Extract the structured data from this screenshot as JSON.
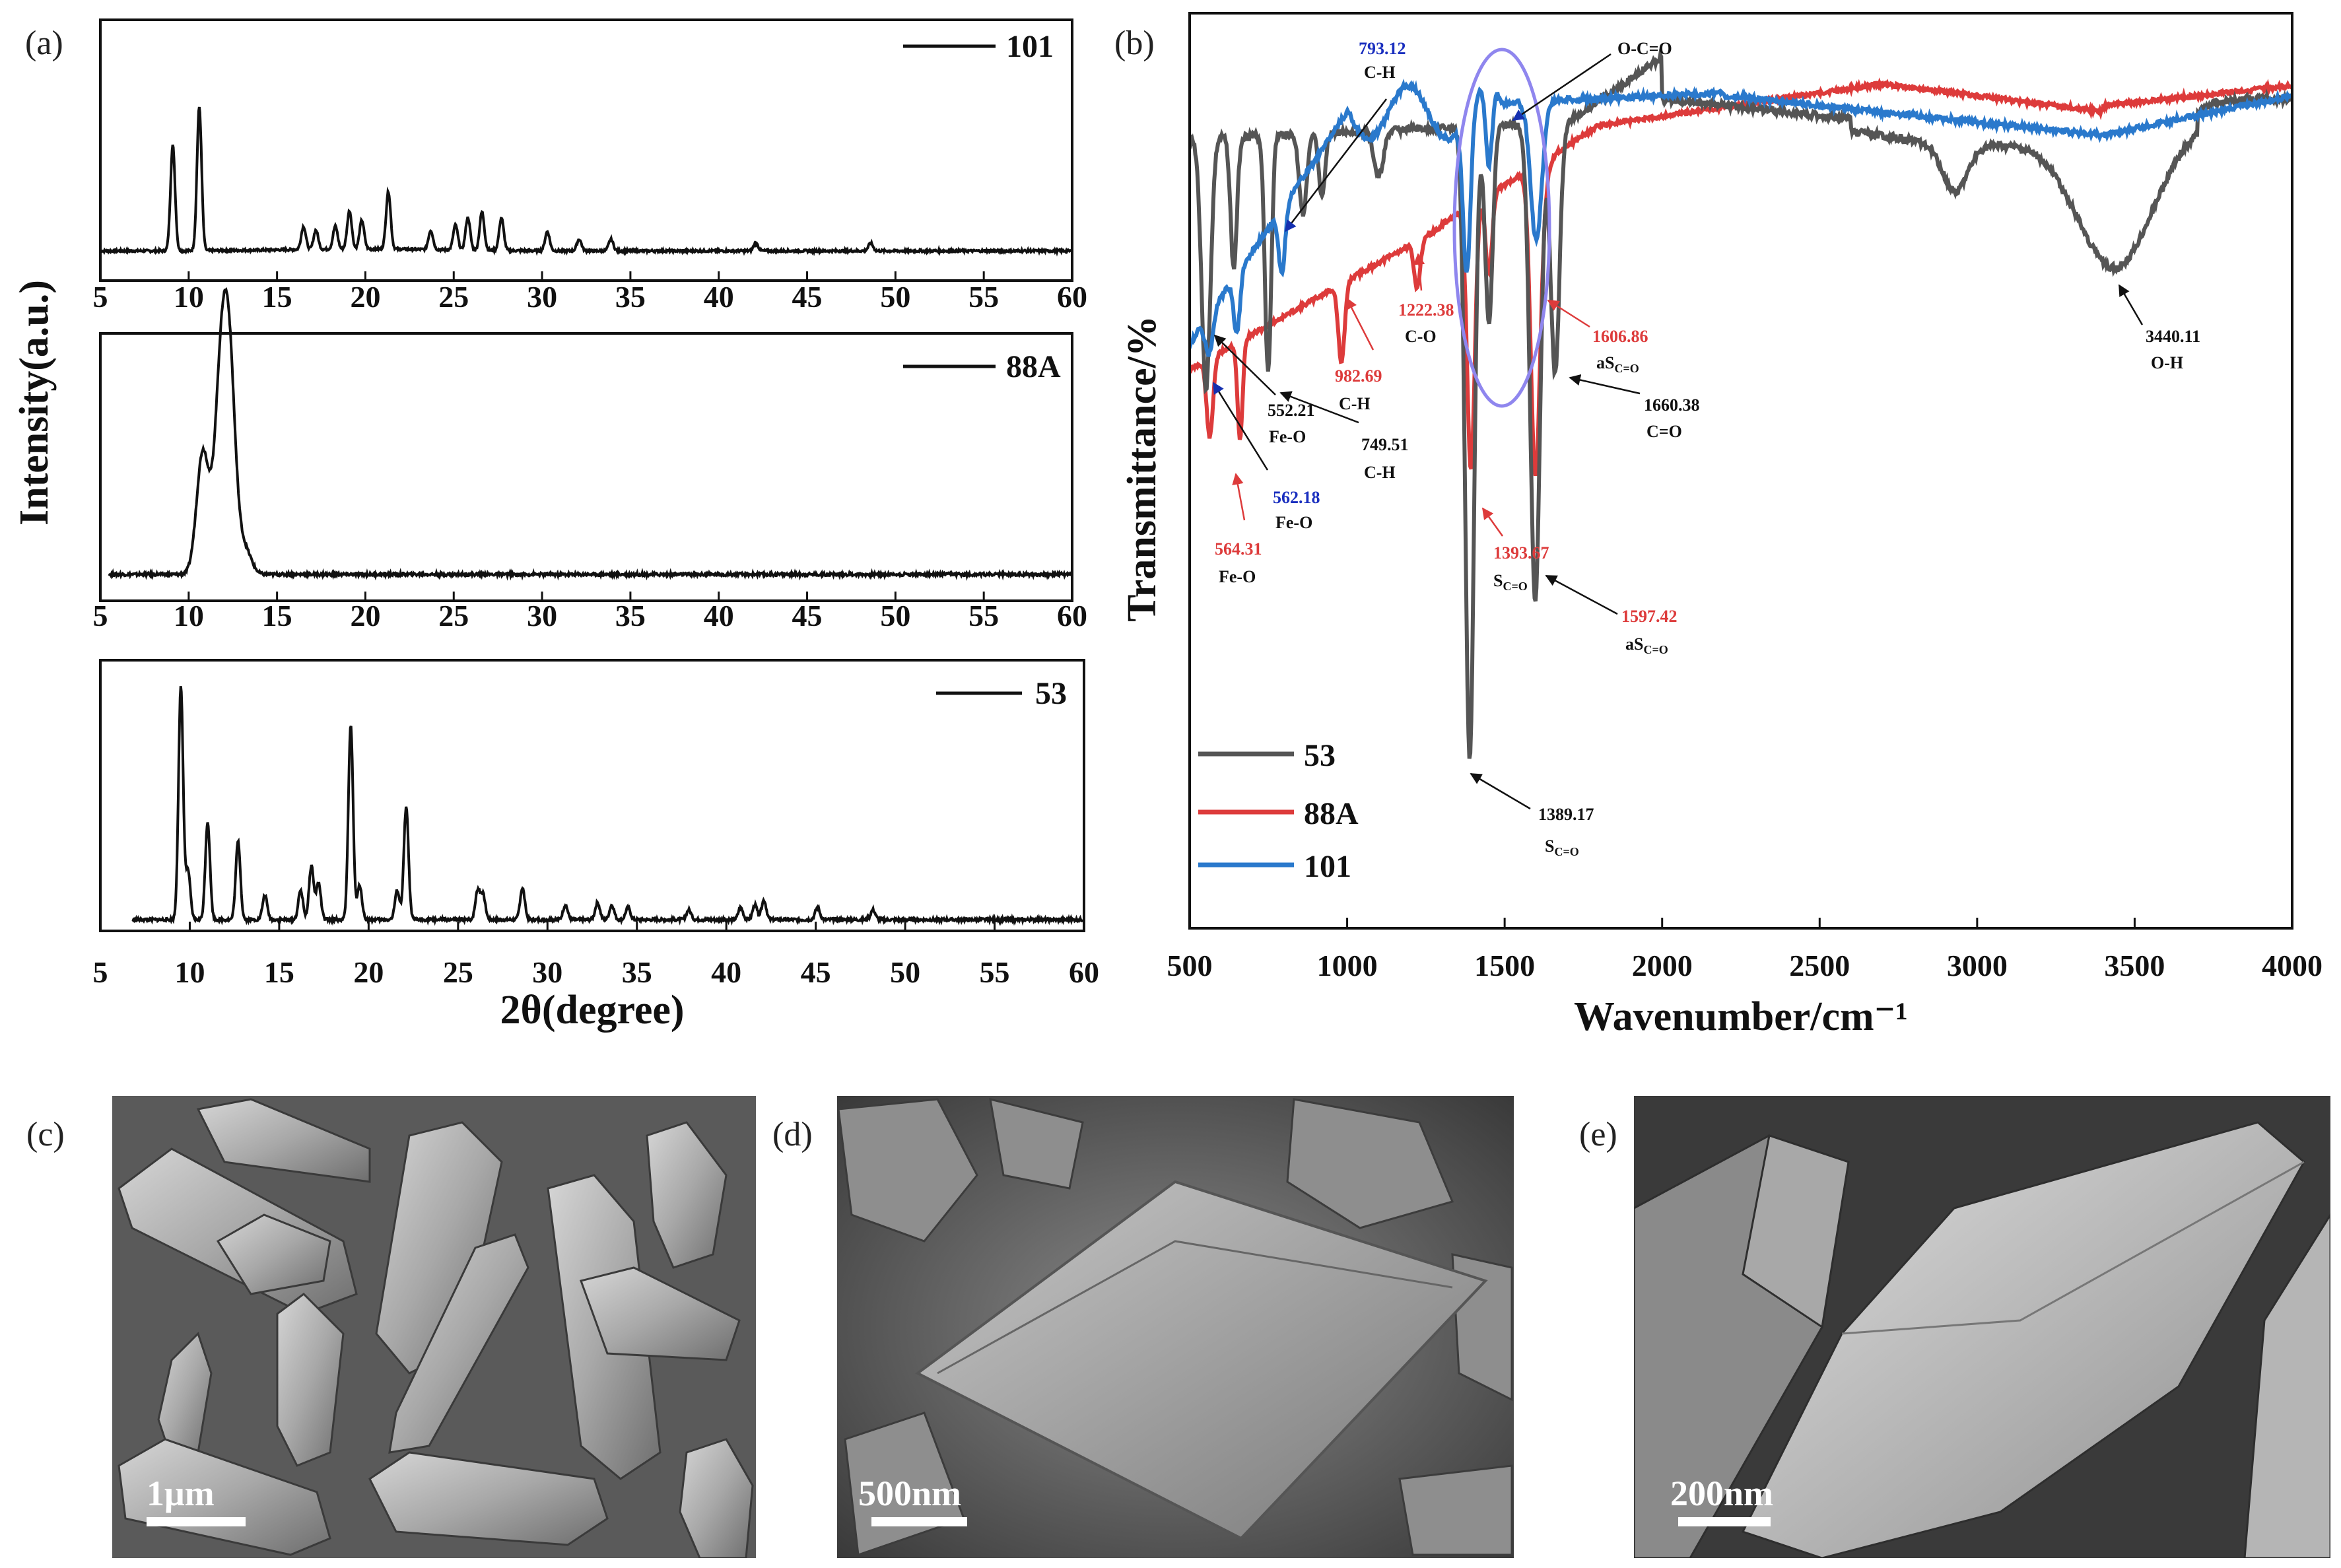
{
  "panels": {
    "a": {
      "label": "(a)"
    },
    "b": {
      "label": "(b)"
    },
    "c": {
      "label": "(c)",
      "scale_bar": "1μm"
    },
    "d": {
      "label": "(d)",
      "scale_bar": "500nm"
    },
    "e": {
      "label": "(e)",
      "scale_bar": "200nm"
    }
  },
  "colors": {
    "s53": "#555555",
    "s88A": "#dd3b3b",
    "s101": "#2a79cc",
    "ellipse": "#8f86ee",
    "frame": "#111111"
  },
  "chart_data": [
    {
      "type": "line",
      "panel": "a",
      "ylabel": "Intensity(a.u.)",
      "xlabel": "2θ(degree)",
      "xlim": [
        5,
        60
      ],
      "xticks": [
        "5",
        "10",
        "15",
        "20",
        "25",
        "30",
        "35",
        "40",
        "45",
        "50",
        "55",
        "60"
      ],
      "subplots": [
        {
          "series": {
            "name": "101",
            "peaks": [
              [
                9.1,
                0.55
              ],
              [
                10.6,
                0.75
              ],
              [
                16.5,
                0.12
              ],
              [
                17.2,
                0.1
              ],
              [
                18.3,
                0.12
              ],
              [
                19.1,
                0.2
              ],
              [
                19.8,
                0.15
              ],
              [
                21.3,
                0.3
              ],
              [
                23.7,
                0.1
              ],
              [
                25.1,
                0.13
              ],
              [
                25.8,
                0.17
              ],
              [
                26.6,
                0.2
              ],
              [
                27.7,
                0.17
              ],
              [
                30.3,
                0.1
              ],
              [
                32.1,
                0.06
              ],
              [
                33.9,
                0.06
              ],
              [
                42.1,
                0.04
              ],
              [
                48.6,
                0.04
              ]
            ]
          }
        },
        {
          "series": {
            "name": "88A",
            "peaks": [
              [
                10.8,
                0.5
              ],
              [
                11.8,
                0.7
              ],
              [
                12.3,
                0.8
              ],
              [
                13.2,
                0.1
              ]
            ]
          }
        },
        {
          "series": {
            "name": "53",
            "peaks": [
              [
                9.5,
                0.95
              ],
              [
                9.9,
                0.2
              ],
              [
                11.0,
                0.4
              ],
              [
                12.7,
                0.32
              ],
              [
                14.2,
                0.1
              ],
              [
                16.2,
                0.12
              ],
              [
                16.8,
                0.22
              ],
              [
                17.2,
                0.15
              ],
              [
                19.0,
                0.8
              ],
              [
                19.5,
                0.14
              ],
              [
                21.6,
                0.12
              ],
              [
                22.1,
                0.46
              ],
              [
                26.1,
                0.12
              ],
              [
                26.4,
                0.1
              ],
              [
                28.6,
                0.13
              ],
              [
                31.0,
                0.06
              ],
              [
                32.8,
                0.07
              ],
              [
                33.6,
                0.06
              ],
              [
                34.5,
                0.05
              ],
              [
                37.9,
                0.04
              ],
              [
                40.8,
                0.05
              ],
              [
                41.6,
                0.06
              ],
              [
                42.1,
                0.08
              ],
              [
                45.1,
                0.05
              ],
              [
                48.2,
                0.04
              ]
            ]
          }
        }
      ]
    },
    {
      "type": "line",
      "panel": "b",
      "ylabel": "Transmittance/%",
      "xlabel": "Wavenumber/cm⁻¹",
      "xlim": [
        500,
        4000
      ],
      "xticks": [
        "500",
        "1000",
        "1500",
        "2000",
        "2500",
        "3000",
        "3500",
        "4000"
      ],
      "series": [
        {
          "name": "53",
          "color": "#555555"
        },
        {
          "name": "88A",
          "color": "#dd3b3b"
        },
        {
          "name": "101",
          "color": "#2a79cc"
        }
      ],
      "annotations": [
        {
          "wavenumber": "793.12",
          "group": "C-H",
          "series": "101"
        },
        {
          "text": "O-C=O",
          "series": "101"
        },
        {
          "wavenumber": "1222.38",
          "group": "C-O",
          "series": "88A"
        },
        {
          "wavenumber": "982.69",
          "group": "C-H",
          "series": "88A"
        },
        {
          "wavenumber": "1606.86",
          "group": "aS",
          "sub": "C=O",
          "series": "88A"
        },
        {
          "wavenumber": "552.21",
          "group": "Fe-O",
          "series": "53"
        },
        {
          "wavenumber": "749.51",
          "group": "C-H",
          "series": "53"
        },
        {
          "wavenumber": "1660.38",
          "group": "C=O",
          "series": "53"
        },
        {
          "wavenumber": "3440.11",
          "group": "O-H",
          "series": "53"
        },
        {
          "wavenumber": "562.18",
          "group": "Fe-O",
          "series": "101"
        },
        {
          "wavenumber": "564.31",
          "group": "Fe-O",
          "series": "88A"
        },
        {
          "wavenumber": "1393.67",
          "group": "S",
          "sub": "C=O",
          "series": "88A"
        },
        {
          "wavenumber": "1597.42",
          "group": "aS",
          "sub": "C=O",
          "series": "88A"
        },
        {
          "wavenumber": "1389.17",
          "group": "S",
          "sub": "C=O",
          "series": "53"
        }
      ]
    }
  ]
}
